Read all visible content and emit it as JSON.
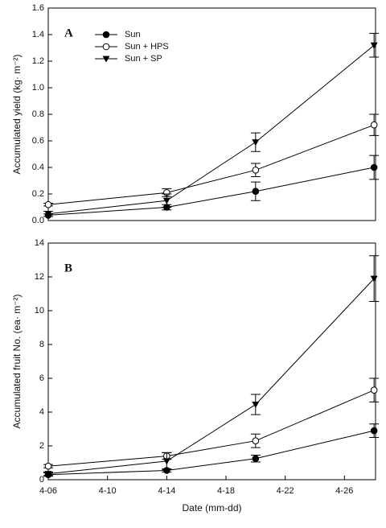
{
  "chart_data": [
    {
      "type": "line",
      "panel_label": "A",
      "y_label": "Accumulated yield (kg· m⁻²)",
      "x": [
        6,
        14,
        20,
        28
      ],
      "xlim": [
        6,
        28.1
      ],
      "ylim": [
        0,
        1.6
      ],
      "yticks": [
        {
          "value": 0,
          "label": "0.0"
        },
        0.2,
        0.4,
        0.6,
        0.8,
        {
          "value": 1,
          "label": "1.0"
        },
        1.2,
        1.4,
        1.6
      ],
      "series": [
        {
          "name": "Sun",
          "color": "#000000",
          "marker": "filled-circle",
          "values": [
            0.04,
            0.1,
            0.22,
            0.4
          ],
          "errors": [
            0.01,
            0.02,
            0.07,
            0.09
          ]
        },
        {
          "name": "Sun + HPS",
          "color": "#000000",
          "marker": "open-circle",
          "values": [
            0.12,
            0.21,
            0.38,
            0.72
          ],
          "errors": [
            0.01,
            0.03,
            0.05,
            0.08
          ]
        },
        {
          "name": "Sun + SP",
          "color": "#000000",
          "marker": "triangle-down",
          "values": [
            0.05,
            0.15,
            0.59,
            1.32
          ],
          "errors": [
            0.02,
            0.05,
            0.07,
            0.09
          ]
        }
      ]
    },
    {
      "type": "line",
      "panel_label": "B",
      "y_label": "Accumulated fruit No. (ea· m⁻²)",
      "x_label": "Date (mm-dd)",
      "x": [
        6,
        14,
        20,
        28
      ],
      "xlim": [
        6,
        28.1
      ],
      "xticks": [
        {
          "value": 6,
          "label": "4-06"
        },
        {
          "value": 10,
          "label": "4-10"
        },
        {
          "value": 14,
          "label": "4-14"
        },
        {
          "value": 18,
          "label": "4-18"
        },
        {
          "value": 22,
          "label": "4-22"
        },
        {
          "value": 26,
          "label": "4-26"
        }
      ],
      "ylim": [
        0,
        14
      ],
      "yticks": [
        0,
        2,
        4,
        6,
        8,
        10,
        12,
        14
      ],
      "series": [
        {
          "color": "#000000",
          "marker": "filled-circle",
          "values": [
            0.3,
            0.55,
            1.25,
            2.9
          ],
          "errors": [
            0.1,
            0.1,
            0.2,
            0.4
          ]
        },
        {
          "color": "#000000",
          "marker": "open-circle",
          "values": [
            0.8,
            1.4,
            2.3,
            5.3
          ],
          "errors": [
            0.1,
            0.2,
            0.4,
            0.7
          ]
        },
        {
          "color": "#000000",
          "marker": "triangle-down",
          "values": [
            0.35,
            1.1,
            4.45,
            11.9
          ],
          "errors": [
            0.1,
            0.5,
            0.6,
            1.35
          ]
        }
      ]
    }
  ]
}
